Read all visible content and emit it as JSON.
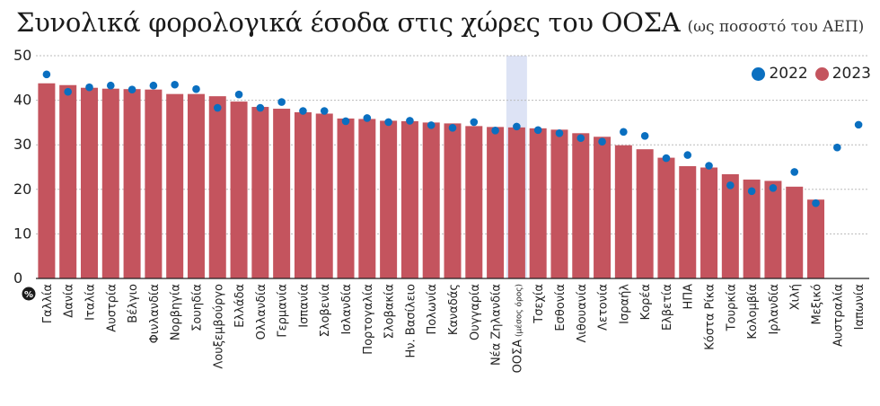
{
  "header": {
    "title": "Συνολικά φορολογικά έσοδα στις χώρες του ΟΟΣΑ",
    "subtitle": "(ως ποσοστό του ΑΕΠ)"
  },
  "legend": {
    "item_2022": "2022",
    "item_2023": "2023",
    "position": "top-right"
  },
  "colors": {
    "bar_2023": "#c4545e",
    "dot_2022": "#0a6fc0",
    "highlight": "#dde3f5",
    "gridline": "#bbbbbb",
    "axis": "#222222"
  },
  "chart_data": {
    "type": "bar",
    "title": "Συνολικά φορολογικά έσοδα στις χώρες του ΟΟΣΑ",
    "subtitle": "(ως ποσοστό του ΑΕΠ)",
    "xlabel": "",
    "ylabel": "%",
    "ylim": [
      0,
      50
    ],
    "yticks": [
      "0",
      "10",
      "20",
      "30",
      "40",
      "50"
    ],
    "grid": true,
    "legend_position": "top-right",
    "highlight_category": "ΟΟΣΑ",
    "categories": [
      "Γαλλία",
      "Δανία",
      "Ιταλία",
      "Αυστρία",
      "Βέλγιο",
      "Φινλανδία",
      "Νορβηγία",
      "Σουηδία",
      "Λουξεμβούργο",
      "Ελλάδα",
      "Ολλανδία",
      "Γερμανία",
      "Ισπανία",
      "Σλοβενία",
      "Ισλανδία",
      "Πορτογαλία",
      "Σλοβακία",
      "Ην. Βασίλειο",
      "Πολωνία",
      "Καναδάς",
      "Ουγγαρία",
      "Νέα Ζηλανδία",
      "ΟΟΣΑ",
      "Τσεχία",
      "Εσθονία",
      "Λιθουανία",
      "Λετονία",
      "Ισραήλ",
      "Κορέα",
      "Ελβετία",
      "ΗΠΑ",
      "Κόστα Ρίκα",
      "Τουρκία",
      "Κολομβία",
      "Ιρλανδία",
      "Χιλή",
      "Μεξικό",
      "Αυστραλία",
      "Ιαπωνία"
    ],
    "category_notes": {
      "ΟΟΣΑ": "(μέσος όρος)"
    },
    "series": [
      {
        "name": "2023",
        "mark": "bar",
        "values": [
          43.8,
          43.4,
          42.8,
          42.6,
          42.5,
          42.4,
          41.4,
          41.4,
          40.9,
          39.7,
          38.5,
          38.1,
          37.3,
          37.0,
          35.9,
          35.8,
          35.4,
          35.3,
          35.0,
          34.8,
          34.2,
          34.0,
          33.9,
          33.7,
          33.4,
          32.6,
          31.8,
          29.9,
          29.0,
          27.1,
          25.2,
          24.9,
          23.4,
          22.2,
          21.9,
          20.6,
          17.7,
          null,
          null
        ]
      },
      {
        "name": "2022",
        "mark": "dot",
        "values": [
          45.8,
          41.9,
          42.9,
          43.3,
          42.4,
          43.3,
          43.5,
          42.5,
          38.3,
          41.3,
          38.3,
          39.6,
          37.6,
          37.6,
          35.3,
          36.0,
          35.1,
          35.4,
          34.4,
          33.8,
          35.1,
          33.2,
          34.1,
          33.3,
          32.6,
          31.5,
          30.7,
          32.9,
          32.0,
          27.0,
          27.7,
          25.3,
          20.9,
          19.6,
          20.3,
          23.9,
          16.9,
          29.4,
          34.5
        ]
      }
    ]
  }
}
